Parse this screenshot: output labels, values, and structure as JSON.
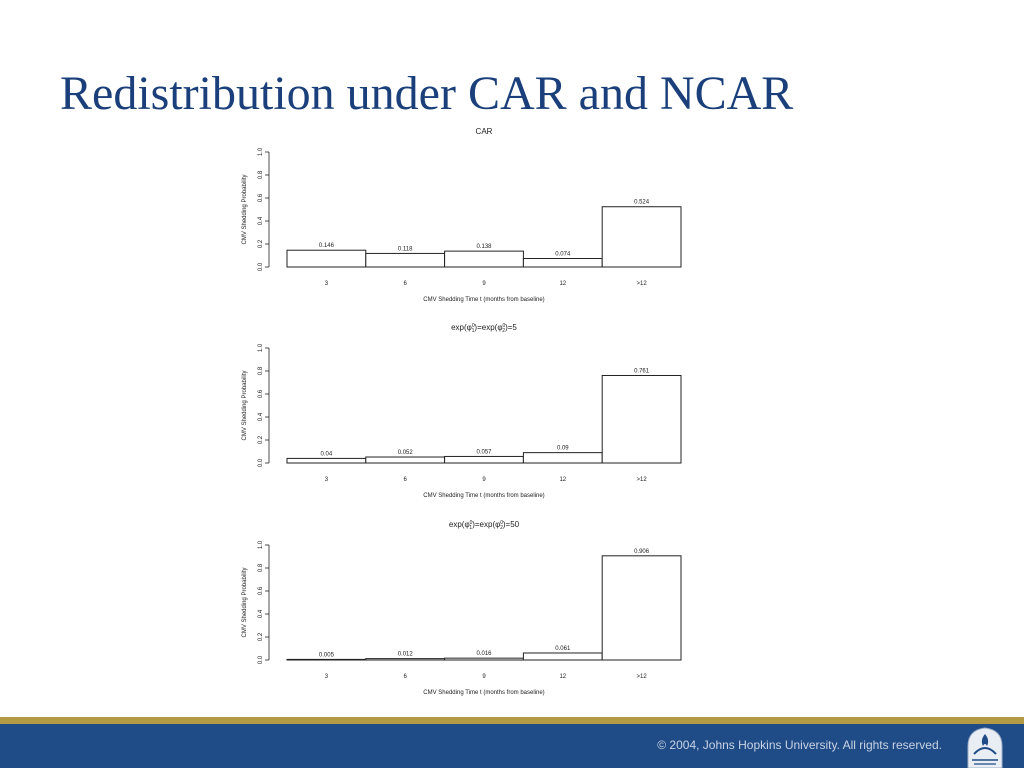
{
  "slide": {
    "title": "Redistribution under CAR and NCAR",
    "footer_text": "© 2004, Johns Hopkins University. All rights reserved.",
    "footer_color": "#1f4b87",
    "accent_rule_color": "#b49a44",
    "title_color": "#1a3f7a",
    "logo_icon": "johns-hopkins-shield-icon"
  },
  "chart_data": [
    {
      "type": "bar",
      "title": "CAR",
      "title_base": "",
      "title_value": "",
      "xlabel": "CMV Shedding Time t (months from baseline)",
      "ylabel": "CMV Shedding Probability",
      "categories": [
        "3",
        "6",
        "9",
        "12",
        ">12"
      ],
      "values": [
        0.146,
        0.118,
        0.138,
        0.074,
        0.524
      ],
      "value_labels": [
        "0.146",
        "0.118",
        "0.138",
        "0.074",
        "0.524"
      ],
      "ylim": [
        0,
        1.0
      ],
      "yticks": [
        "0.0",
        "0.2",
        "0.4",
        "0.6",
        "0.8",
        "1.0"
      ],
      "grid": false,
      "legend": "none"
    },
    {
      "type": "bar",
      "title": "",
      "title_base": "exp(φ",
      "title_value": "5",
      "xlabel": "CMV Shedding Time t (months from baseline)",
      "ylabel": "CMV Shedding Probability",
      "categories": [
        "3",
        "6",
        "9",
        "12",
        ">12"
      ],
      "values": [
        0.04,
        0.052,
        0.057,
        0.09,
        0.761
      ],
      "value_labels": [
        "0.04",
        "0.052",
        "0.057",
        "0.09",
        "0.761"
      ],
      "ylim": [
        0,
        1.0
      ],
      "yticks": [
        "0.0",
        "0.2",
        "0.4",
        "0.6",
        "0.8",
        "1.0"
      ],
      "grid": false,
      "legend": "none"
    },
    {
      "type": "bar",
      "title": "",
      "title_base": "exp(φ",
      "title_value": "50",
      "xlabel": "CMV Shedding Time t (months from baseline)",
      "ylabel": "CMV Shedding Probability",
      "categories": [
        "3",
        "6",
        "9",
        "12",
        ">12"
      ],
      "values": [
        0.005,
        0.012,
        0.016,
        0.061,
        0.906
      ],
      "value_labels": [
        "0.005",
        "0.012",
        "0.016",
        "0.061",
        "0.906"
      ],
      "ylim": [
        0,
        1.0
      ],
      "yticks": [
        "0.0",
        "0.2",
        "0.4",
        "0.6",
        "0.8",
        "1.0"
      ],
      "grid": false,
      "legend": "none"
    }
  ]
}
